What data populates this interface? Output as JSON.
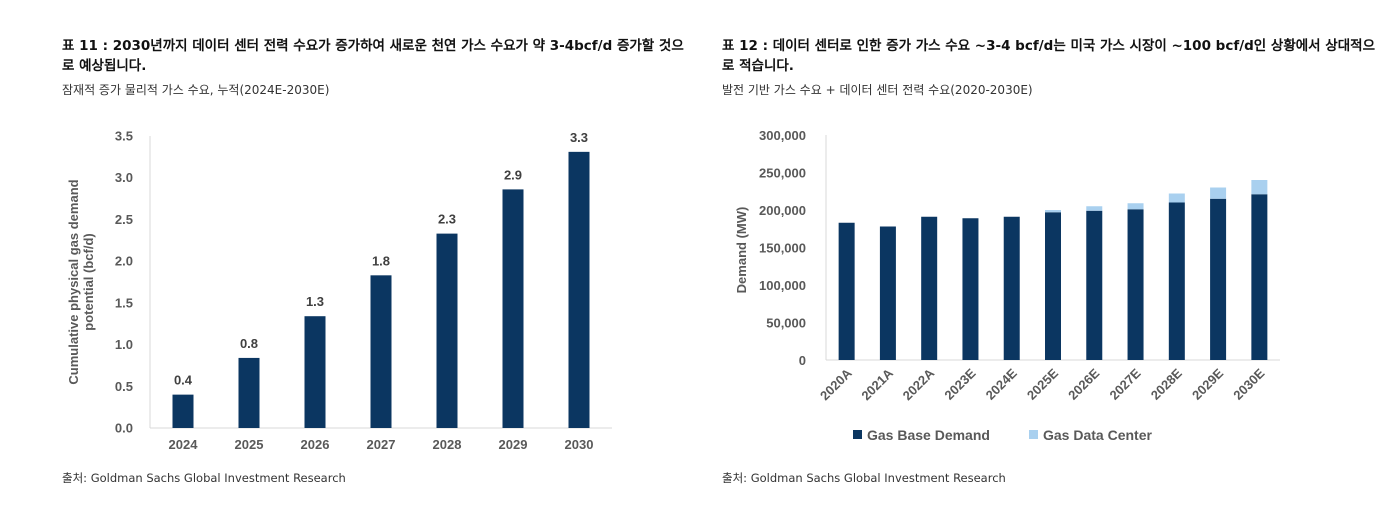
{
  "left_panel": {
    "title": "표 11 : 2030년까지 데이터 센터 전력 수요가 증가하여 새로운 천연 가스 수요가 약 3-4bcf/d 증가할 것으로 예상됩니다.",
    "subtitle": "잠재적 증가 물리적 가스 수요, 누적(2024E-2030E)",
    "source": "출처: Goldman Sachs Global Investment Research"
  },
  "right_panel": {
    "title": "표 12 : 데이터 센터로 인한 증가 가스 수요 ~3-4 bcf/d는 미국 가스 시장이 ~100 bcf/d인 상황에서 상대적으로 적습니다.",
    "subtitle": "발전 기반 가스 수요 + 데이터 센터 전력 수요(2020-2030E)",
    "source": "출처: Goldman Sachs Global Investment Research"
  },
  "chart_data": [
    {
      "type": "bar",
      "title": "",
      "categories": [
        "2024",
        "2025",
        "2026",
        "2027",
        "2028",
        "2029",
        "2030"
      ],
      "values": [
        0.4,
        0.84,
        1.34,
        1.83,
        2.33,
        2.86,
        3.31
      ],
      "data_labels": [
        "0.4",
        "0.8",
        "1.3",
        "1.8",
        "2.3",
        "2.9",
        "3.3"
      ],
      "ylabel_lines": [
        "Cumulative  physical gas demand",
        "potential (bcf/d)"
      ],
      "xlabel": "",
      "ylim": [
        0,
        3.5
      ],
      "yticks": [
        "0.0",
        "0.5",
        "1.0",
        "1.5",
        "2.0",
        "2.5",
        "3.0",
        "3.5"
      ],
      "bar_color": "#0b3661",
      "grid": false
    },
    {
      "type": "bar",
      "stacked": true,
      "categories": [
        "2020A",
        "2021A",
        "2022A",
        "2023E",
        "2024E",
        "2025E",
        "2026E",
        "2027E",
        "2028E",
        "2029E",
        "2030E"
      ],
      "series": [
        {
          "name": "Gas Base Demand",
          "color": "#0b3661",
          "values": [
            183000,
            178000,
            191000,
            189000,
            191000,
            197000,
            199000,
            201000,
            210000,
            215000,
            221000
          ]
        },
        {
          "name": "Gas Data Center",
          "color": "#a9d0ef",
          "values": [
            0,
            0,
            0,
            0,
            0,
            3000,
            6000,
            8000,
            12000,
            15000,
            19000
          ]
        }
      ],
      "ylabel": "Demand (MW)",
      "xlabel": "",
      "ylim": [
        0,
        300000
      ],
      "yticks": [
        "0",
        "50,000",
        "100,000",
        "150,000",
        "200,000",
        "250,000",
        "300,000"
      ],
      "legend_position": "bottom",
      "grid": false
    }
  ]
}
